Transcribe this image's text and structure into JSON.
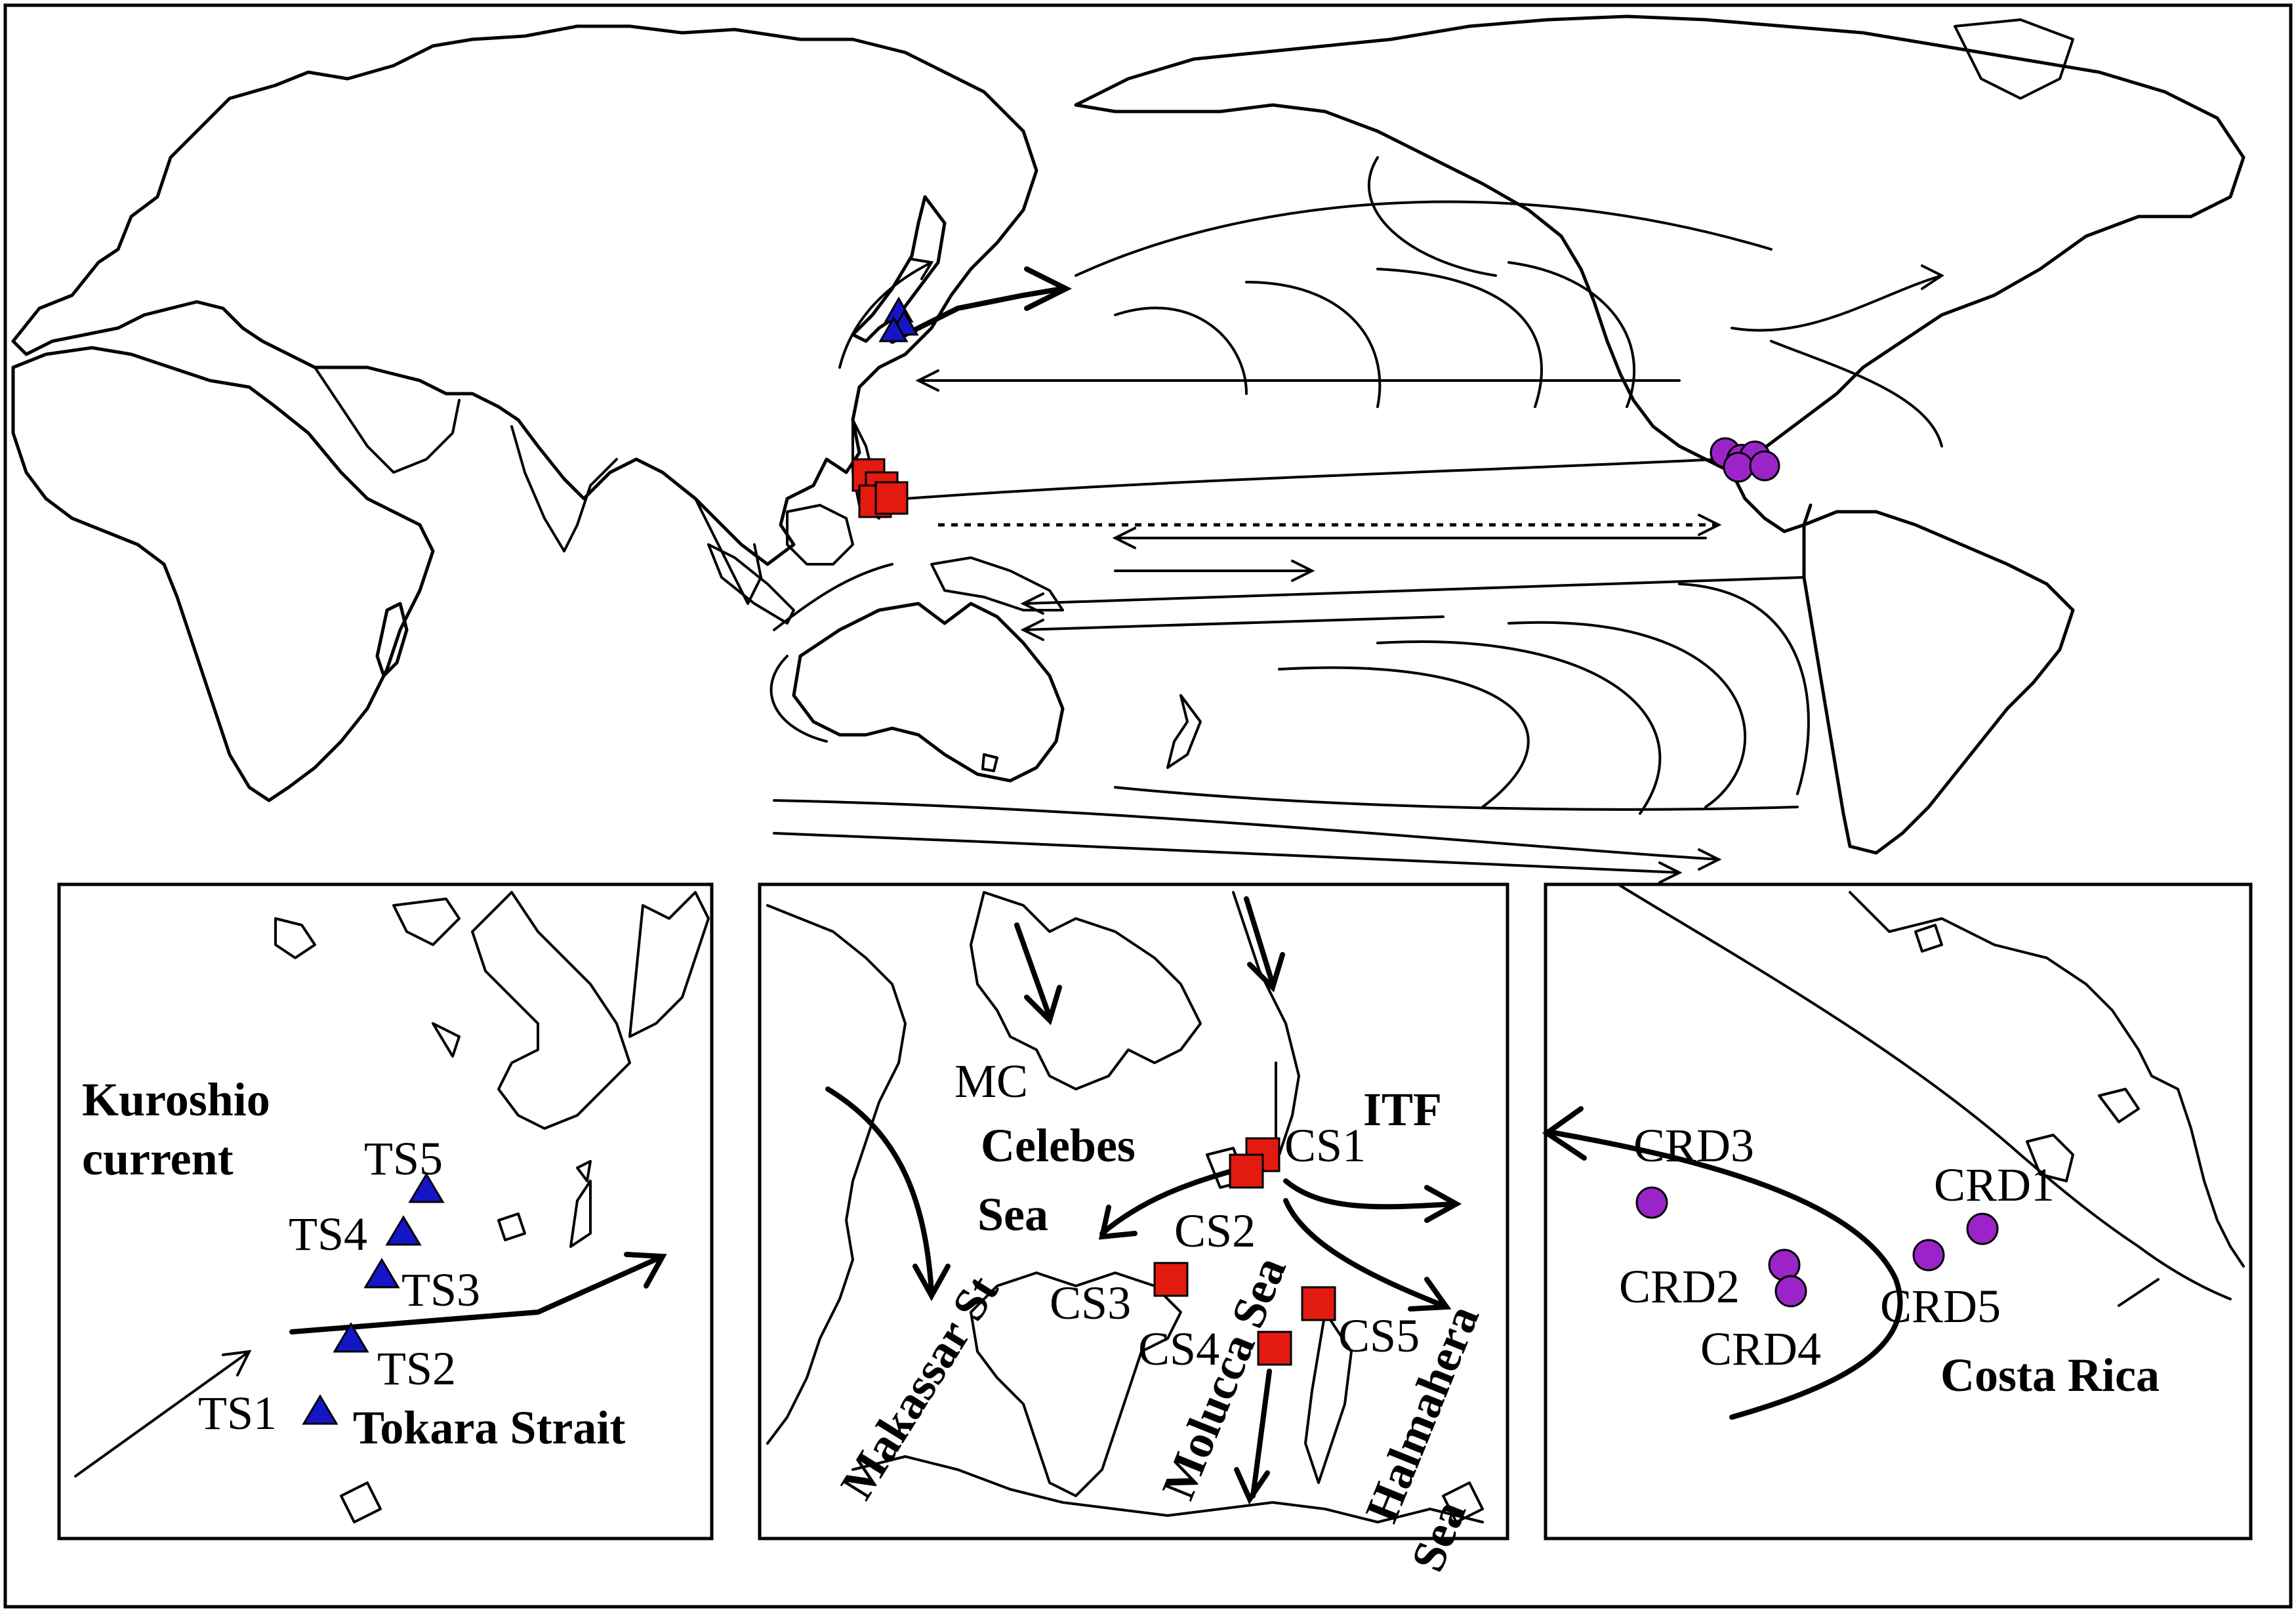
{
  "colors": {
    "kuroshio_marker": "#1515c8",
    "celebes_marker": "#e21a10",
    "costa_rica_marker": "#9a24c8",
    "line": "#000000"
  },
  "insets": {
    "kuroshio": {
      "region_label_line1": "Kuroshio",
      "region_label_line2": "current",
      "strait_label": "Tokara Strait",
      "stations": [
        "TS1",
        "TS2",
        "TS3",
        "TS4",
        "TS5"
      ],
      "marker_shape": "triangle"
    },
    "celebes": {
      "labels": {
        "mc": "MC",
        "itf": "ITF",
        "celebes_line1": "Celebes",
        "celebes_line2": "Sea",
        "makassar": "Makassar St",
        "molucca": "Molucca Sea",
        "halmahera_line1": "Halmahera",
        "halmahera_line2": "Sea"
      },
      "stations": [
        "CS1",
        "CS2",
        "CS3",
        "CS4",
        "CS5"
      ],
      "marker_shape": "square"
    },
    "costa_rica": {
      "region_label": "Costa Rica",
      "stations": [
        "CRD1",
        "CRD2",
        "CRD3",
        "CRD4",
        "CRD5"
      ],
      "marker_shape": "circle"
    }
  }
}
